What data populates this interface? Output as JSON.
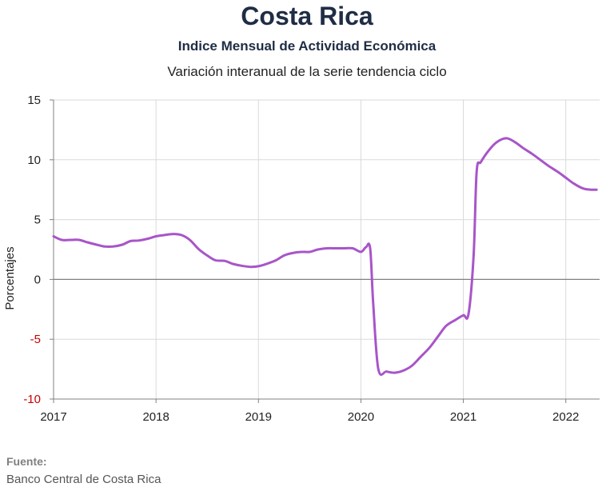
{
  "header": {
    "title": "Costa Rica",
    "subtitle": "Indice Mensual de  Actividad Económica",
    "subtitle2": "Variación interanual de la serie tendencia ciclo"
  },
  "source": {
    "label": "Fuente:",
    "text": "Banco Central de Costa Rica"
  },
  "colors": {
    "line": "#a855c8",
    "negative_tick": "#cc0000",
    "grid": "#d9d9d9",
    "zero_line": "#808080"
  },
  "chart_data": {
    "type": "line",
    "title": "Indice Mensual de  Actividad Económica",
    "subtitle": "Variación interanual de la serie tendencia ciclo",
    "xlabel": "",
    "ylabel": "Porcentajes",
    "ylim": [
      -10,
      15
    ],
    "xlim": [
      2017.0,
      2022.33
    ],
    "yticks": [
      "15",
      "10",
      "5",
      "0",
      "-5",
      "-10"
    ],
    "ytick_values": [
      15,
      10,
      5,
      0,
      -5,
      -10
    ],
    "xticks": [
      "2017",
      "2018",
      "2019",
      "2020",
      "2021",
      "2022"
    ],
    "xtick_values": [
      2017,
      2018,
      2019,
      2020,
      2021,
      2022
    ],
    "grid": true,
    "legend": "none",
    "series": [
      {
        "x": [
          2017.0,
          2017.08,
          2017.17,
          2017.25,
          2017.33,
          2017.42,
          2017.5,
          2017.58,
          2017.67,
          2017.75,
          2017.83,
          2017.92,
          2018.0,
          2018.08,
          2018.17,
          2018.25,
          2018.33,
          2018.42,
          2018.5,
          2018.58,
          2018.67,
          2018.75,
          2018.83,
          2018.92,
          2019.0,
          2019.08,
          2019.17,
          2019.25,
          2019.33,
          2019.42,
          2019.5,
          2019.58,
          2019.67,
          2019.75,
          2019.83,
          2019.92,
          2020.0,
          2020.05,
          2020.09,
          2020.12,
          2020.17,
          2020.25,
          2020.33,
          2020.42,
          2020.5,
          2020.58,
          2020.67,
          2020.75,
          2020.83,
          2020.92,
          2021.0,
          2021.05,
          2021.1,
          2021.13,
          2021.17,
          2021.25,
          2021.33,
          2021.42,
          2021.5,
          2021.58,
          2021.67,
          2021.75,
          2021.83,
          2021.92,
          2022.0,
          2022.08,
          2022.17,
          2022.25,
          2022.3
        ],
        "y": [
          3.6,
          3.3,
          3.3,
          3.3,
          3.1,
          2.9,
          2.75,
          2.75,
          2.9,
          3.2,
          3.25,
          3.4,
          3.6,
          3.7,
          3.8,
          3.7,
          3.3,
          2.5,
          2.0,
          1.6,
          1.55,
          1.3,
          1.15,
          1.05,
          1.1,
          1.3,
          1.6,
          2.0,
          2.2,
          2.3,
          2.3,
          2.5,
          2.6,
          2.6,
          2.6,
          2.6,
          2.3,
          2.7,
          2.6,
          -2.0,
          -7.5,
          -7.7,
          -7.8,
          -7.6,
          -7.2,
          -6.5,
          -5.7,
          -4.8,
          -3.9,
          -3.4,
          -3.0,
          -2.9,
          2.0,
          9.0,
          9.8,
          10.8,
          11.5,
          11.8,
          11.5,
          11.0,
          10.5,
          10.0,
          9.5,
          9.0,
          8.5,
          8.0,
          7.6,
          7.5,
          7.5
        ]
      }
    ]
  }
}
